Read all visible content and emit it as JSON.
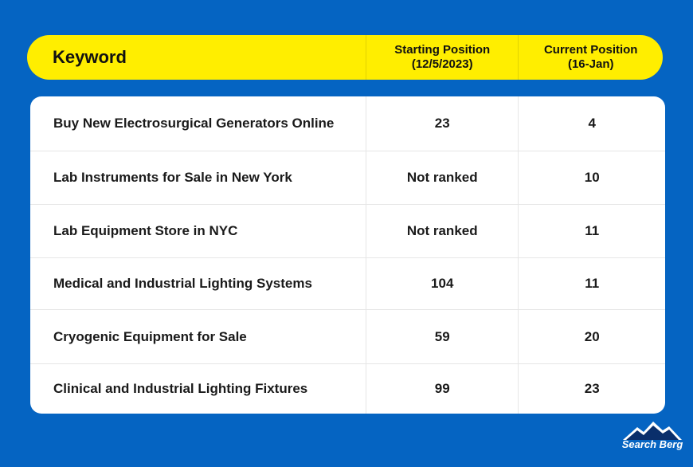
{
  "header": {
    "keyword": "Keyword",
    "starting_line1": "Starting Position",
    "starting_line2": "(12/5/2023)",
    "current_line1": "Current Position",
    "current_line2": "(16-Jan)"
  },
  "rows": [
    {
      "keyword": "Buy New Electrosurgical Generators Online",
      "starting": "23",
      "current": "4"
    },
    {
      "keyword": "Lab Instruments for Sale in New York",
      "starting": "Not ranked",
      "current": "10"
    },
    {
      "keyword": "Lab Equipment Store in NYC",
      "starting": "Not ranked",
      "current": "11"
    },
    {
      "keyword": "Medical and Industrial Lighting Systems",
      "starting": "104",
      "current": "11"
    },
    {
      "keyword": "Cryogenic Equipment for Sale",
      "starting": "59",
      "current": "20"
    },
    {
      "keyword": "Clinical and Industrial Lighting Fixtures",
      "starting": "99",
      "current": "23"
    }
  ],
  "chart_data": {
    "type": "table",
    "columns": [
      "Keyword",
      "Starting Position (12/5/2023)",
      "Current Position (16-Jan)"
    ],
    "rows": [
      [
        "Buy New Electrosurgical Generators Online",
        "23",
        "4"
      ],
      [
        "Lab Instruments for Sale in New York",
        "Not ranked",
        "10"
      ],
      [
        "Lab Equipment Store in NYC",
        "Not ranked",
        "11"
      ],
      [
        "Medical and Industrial Lighting Systems",
        "104",
        "11"
      ],
      [
        "Cryogenic Equipment for Sale",
        "59",
        "20"
      ],
      [
        "Clinical and Industrial Lighting Fixtures",
        "99",
        "23"
      ]
    ]
  },
  "logo": {
    "text": "Search Berg",
    "icon": "mountain-icon"
  },
  "colors": {
    "background": "#0564c2",
    "header": "#ffee00",
    "table": "#ffffff"
  }
}
